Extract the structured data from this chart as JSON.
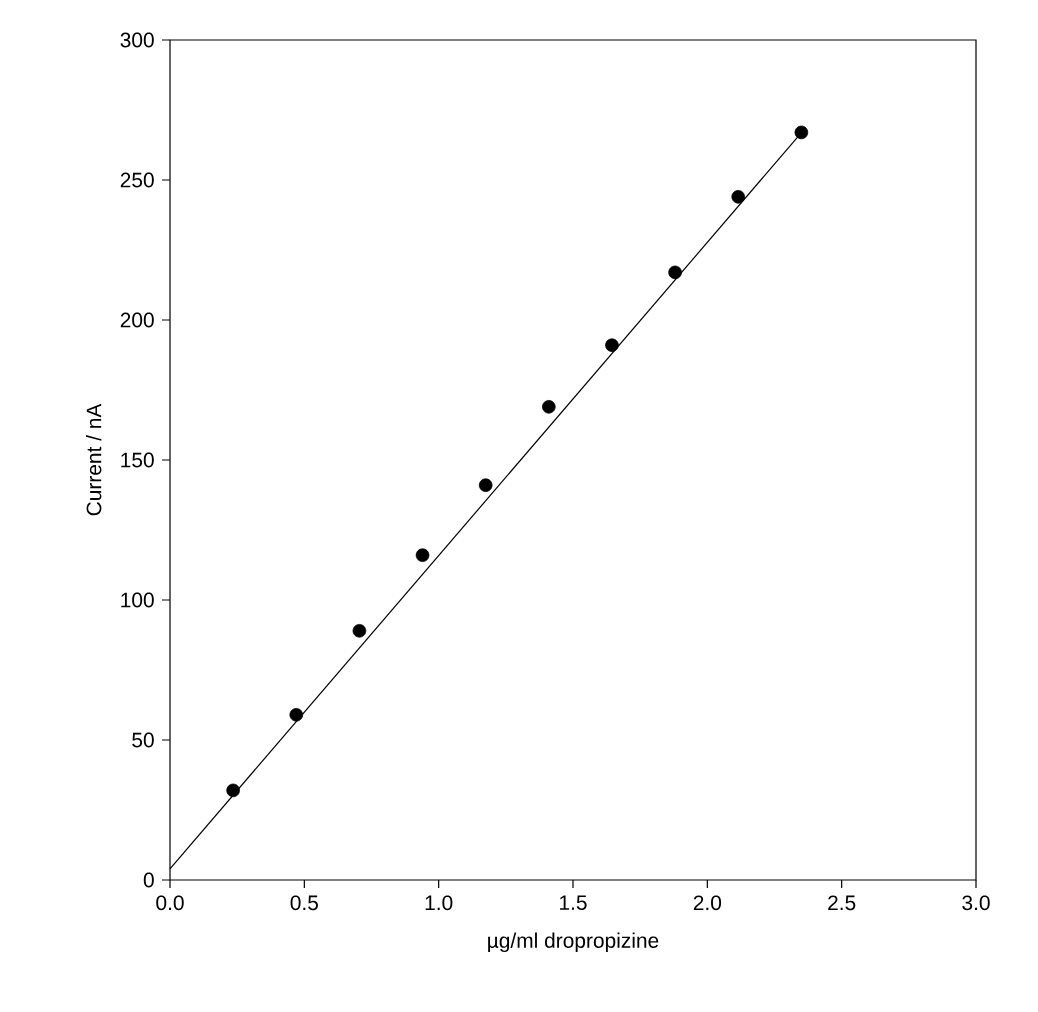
{
  "chart_data": {
    "type": "scatter",
    "xlabel": "µg/ml dropropizine",
    "ylabel": "Current / nA",
    "xlim": [
      0,
      3
    ],
    "ylim": [
      0,
      300
    ],
    "xticks": [
      {
        "value": 0,
        "label": "0.0"
      },
      {
        "value": 0.5,
        "label": "0.5"
      },
      {
        "value": 1,
        "label": "1.0"
      },
      {
        "value": 1.5,
        "label": "1.5"
      },
      {
        "value": 2,
        "label": "2.0"
      },
      {
        "value": 2.5,
        "label": "2.5"
      },
      {
        "value": 3,
        "label": "3.0"
      }
    ],
    "yticks": [
      0,
      50,
      100,
      150,
      200,
      250,
      300
    ],
    "x": [
      0.235,
      0.47,
      0.705,
      0.94,
      1.175,
      1.41,
      1.645,
      1.88,
      2.115,
      2.35
    ],
    "series": [
      {
        "color": "#000000",
        "marker": "circle",
        "values": [
          32,
          59,
          89,
          116,
          141,
          169,
          191,
          217,
          244,
          267
        ]
      },
      {
        "type": "line",
        "color": "#000000",
        "marker": "none",
        "x": [
          0,
          2.36
        ],
        "values": [
          4,
          268
        ]
      }
    ]
  }
}
